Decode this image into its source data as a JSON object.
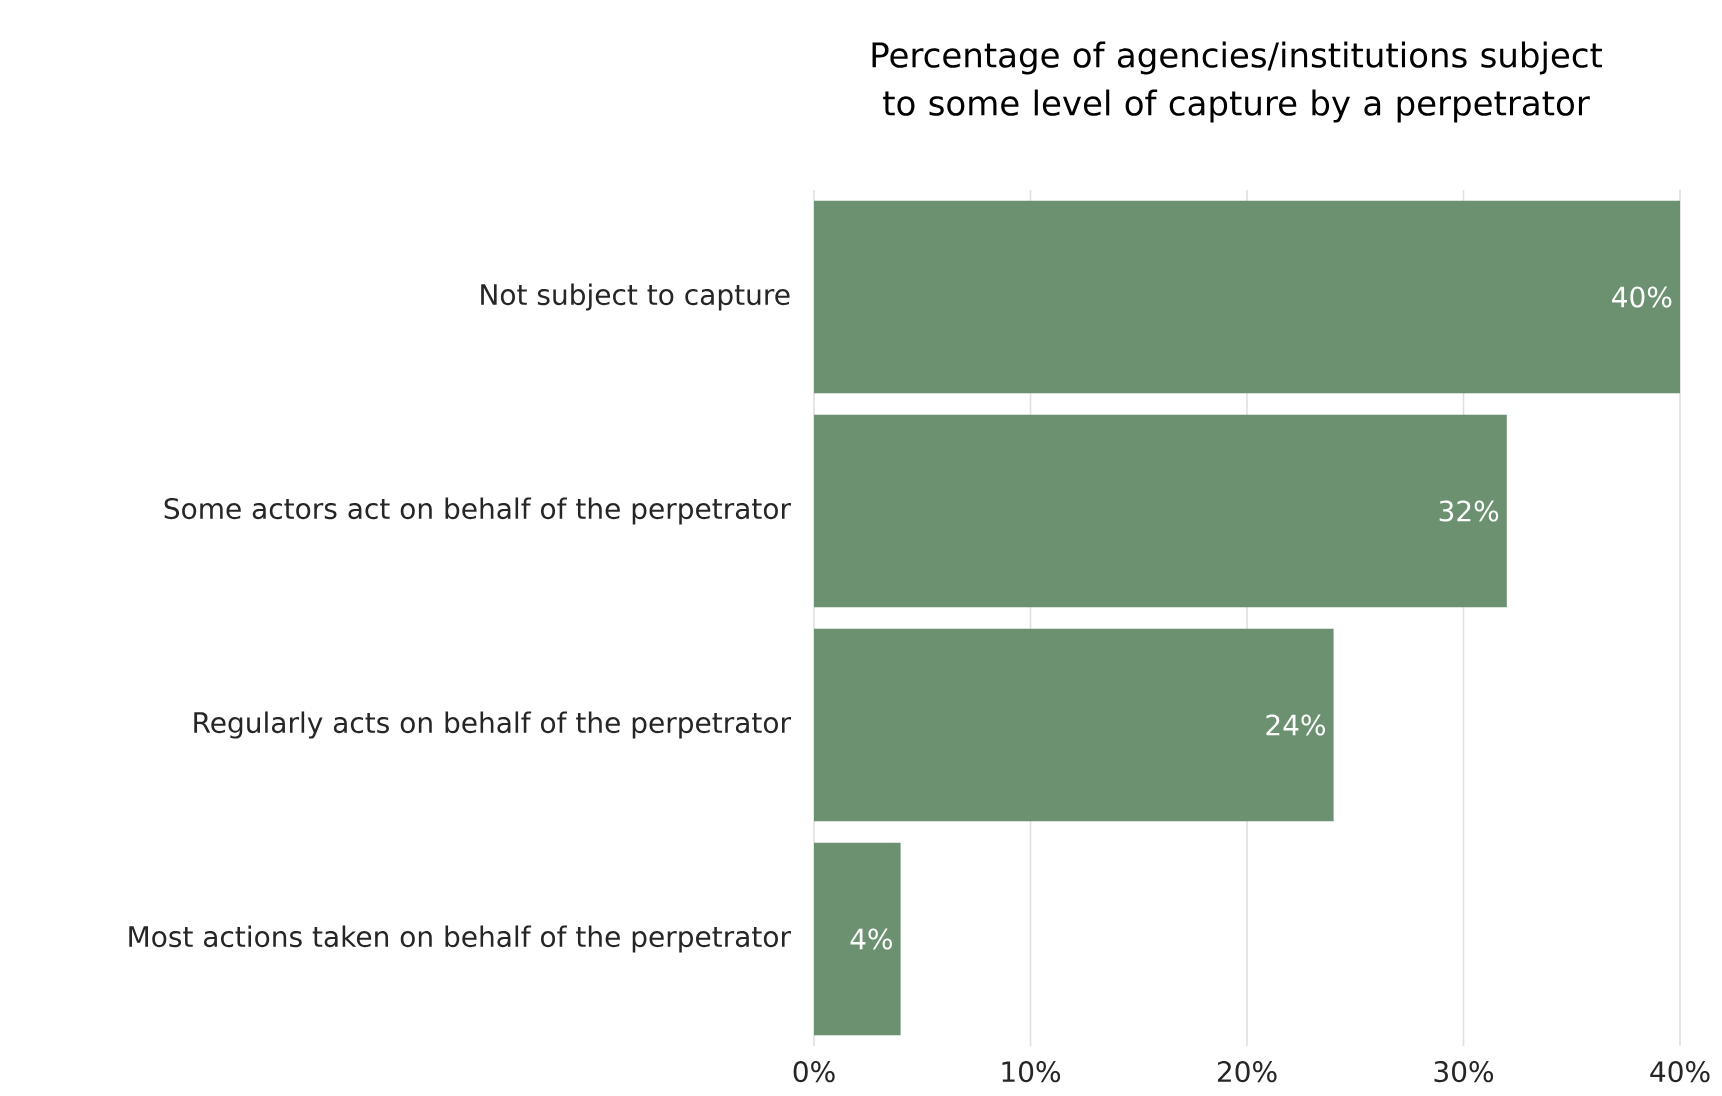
{
  "chart_data": {
    "type": "bar",
    "orientation": "horizontal",
    "title": "Percentage of agencies/institutions subject to some level of capture by a perpetrator",
    "categories": [
      "Not subject to capture",
      "Some actors act on behalf of the perpetrator",
      "Regularly acts on behalf of the perpetrator",
      "Most actions taken on behalf of the perpetrator"
    ],
    "values": [
      40,
      32,
      24,
      4
    ],
    "value_labels": [
      "40%",
      "32%",
      "24%",
      "4%"
    ],
    "color": "#6b9171",
    "xlim": [
      0,
      40
    ],
    "xticks": [
      {
        "value": 0,
        "label": "0%"
      },
      {
        "value": 10,
        "label": "10%"
      },
      {
        "value": 20,
        "label": "20%"
      },
      {
        "value": 30,
        "label": "30%"
      },
      {
        "value": 40,
        "label": "40%"
      }
    ],
    "grid": "x"
  }
}
